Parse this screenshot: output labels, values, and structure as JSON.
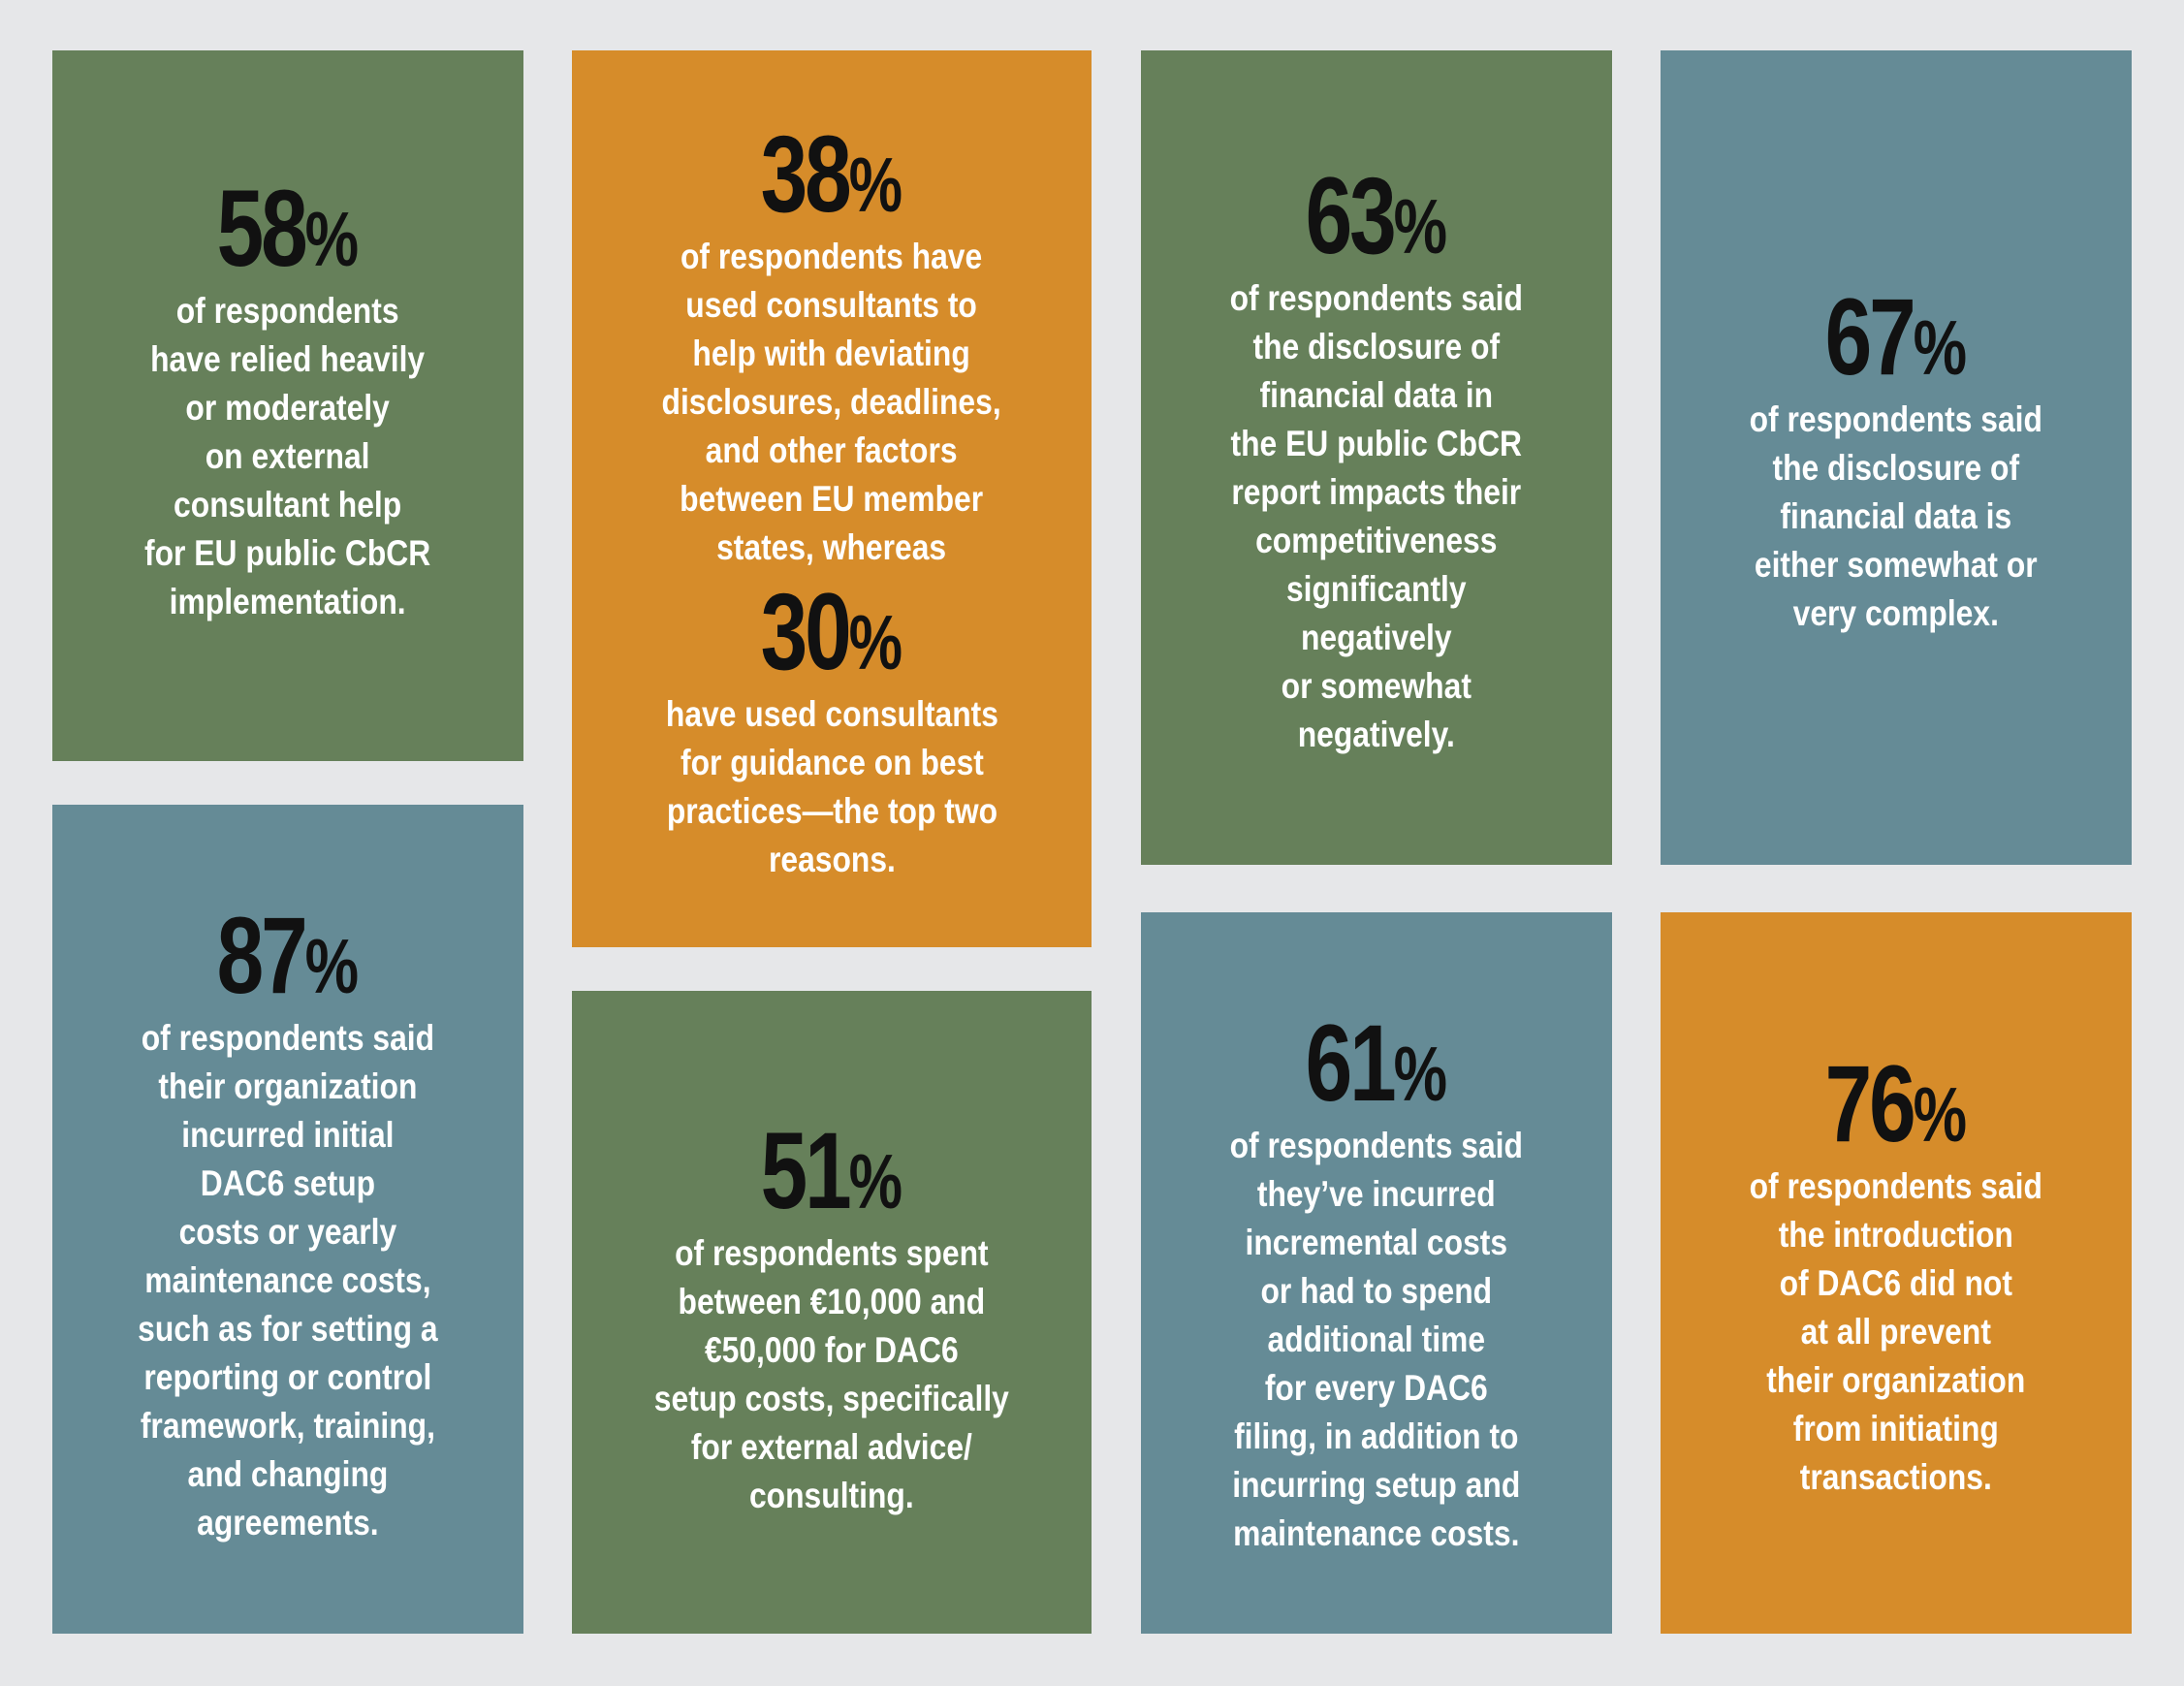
{
  "cards": [
    {
      "number": "58",
      "percent": "%",
      "text": "of respondents\nhave relied heavily\nor moderately\non external\nconsultant help\nfor EU public CbCR\nimplementation."
    },
    {
      "number": "38",
      "percent": "%",
      "text": "of respondents have\nused consultants to\nhelp with deviating\ndisclosures, deadlines,\nand other factors\nbetween EU member\nstates, whereas",
      "number2": "30",
      "percent2": "%",
      "text2": "have used consultants\nfor guidance on best\npractices—the top two\nreasons."
    },
    {
      "number": "63",
      "percent": "%",
      "text": "of respondents said\nthe disclosure of\nfinancial data in\nthe EU public CbCR\nreport impacts their\ncompetitiveness\nsignificantly\nnegatively\nor somewhat\nnegatively."
    },
    {
      "number": "67",
      "percent": "%",
      "text": "of respondents said\nthe disclosure of\nfinancial data is\neither somewhat or\nvery complex."
    },
    {
      "number": "87",
      "percent": "%",
      "text": "of respondents said\ntheir organization\nincurred initial\nDAC6 setup\ncosts or yearly\nmaintenance costs,\nsuch as for setting a\nreporting or control\nframework, training,\nand changing\nagreements."
    },
    {
      "number": "51",
      "percent": "%",
      "text": "of respondents spent\nbetween €10,000 and\n€50,000 for DAC6\nsetup costs, specifically\nfor external advice/\nconsulting."
    },
    {
      "number": "61",
      "percent": "%",
      "text": "of respondents said\nthey’ve incurred\nincremental costs\nor had to spend\nadditional time\nfor every DAC6\nfiling, in addition to\nincurring setup and\nmaintenance costs."
    },
    {
      "number": "76",
      "percent": "%",
      "text": "of respondents said\nthe introduction\nof DAC6 did not\nat all prevent\ntheir organization\nfrom initiating\ntransactions."
    }
  ],
  "colors": {
    "background": "#e6e7e9",
    "green": "#66805a",
    "orange": "#d68c2a",
    "teal": "#658b96",
    "number_text": "#111111",
    "body_text": "#ffffff"
  }
}
